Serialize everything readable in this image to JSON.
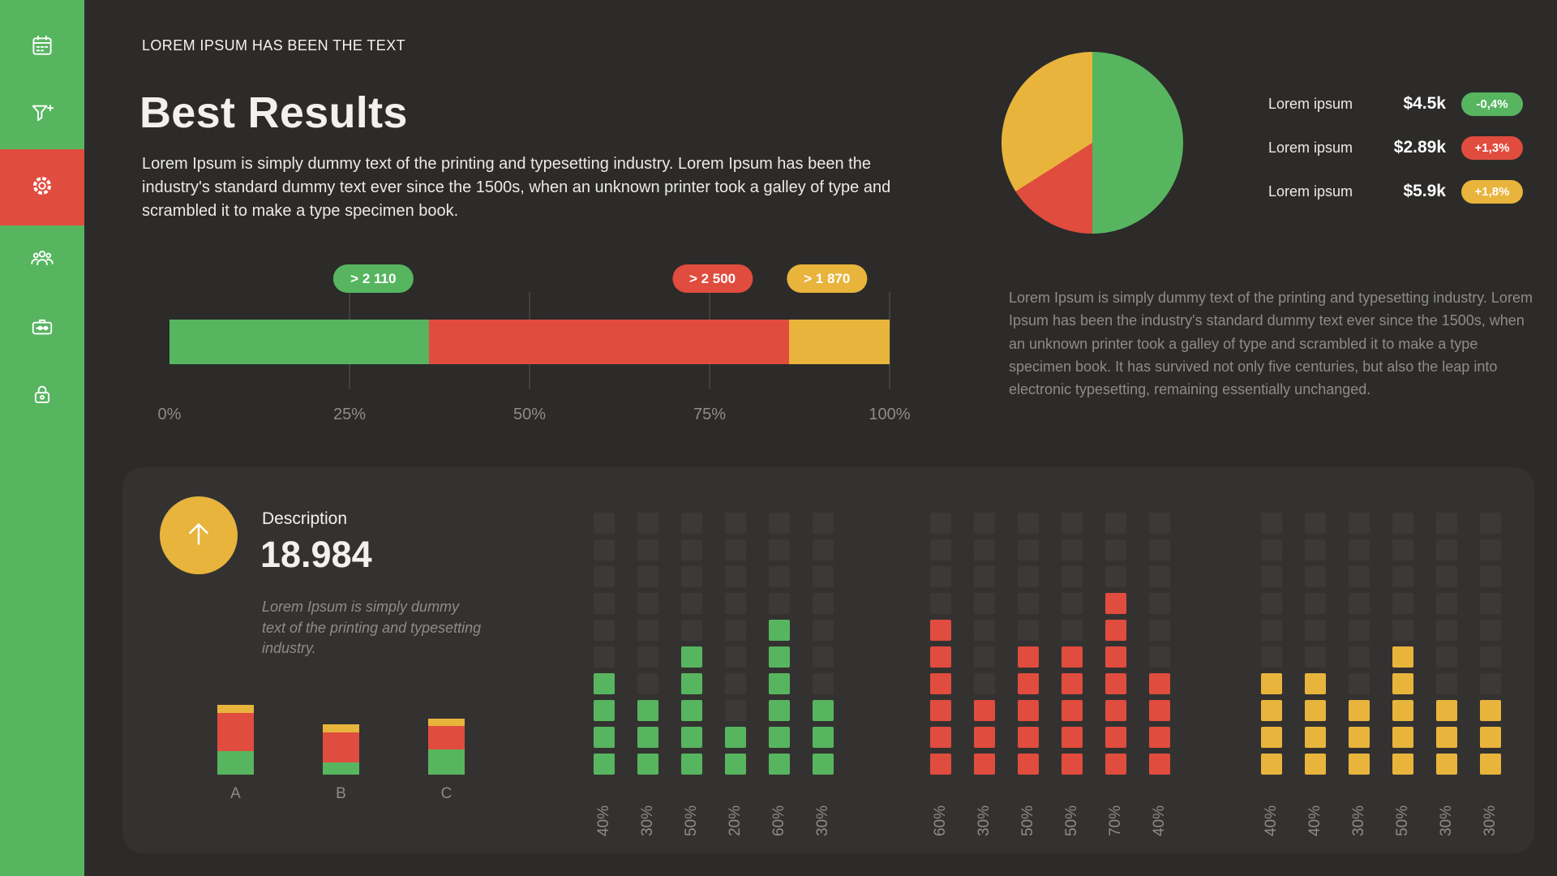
{
  "theme": {
    "background": "#2c2b29",
    "card": "#343231",
    "sidebar": "#57b560",
    "green": "#57b560",
    "red": "#e04c3e",
    "yellow": "#e8b43c",
    "empty": "#3b3a37",
    "muted": "#8d8c8a",
    "text": "#f2f1ef"
  },
  "sidebar": {
    "active_color": "#e04c3e",
    "items": [
      {
        "icon": "calendar-icon",
        "active": false
      },
      {
        "icon": "filter-add-icon",
        "active": false
      },
      {
        "icon": "gear-icon",
        "active": true
      },
      {
        "icon": "users-icon",
        "active": false
      },
      {
        "icon": "briefcase-icon",
        "active": false
      },
      {
        "icon": "lock-icon",
        "active": false
      }
    ]
  },
  "header": {
    "eyebrow": "LOREM IPSUM HAS BEEN THE TEXT",
    "title": "Best Results",
    "paragraph": "Lorem Ipsum is simply dummy text of the printing and typesetting industry. Lorem Ipsum has been the industry's standard dummy text ever since the 1500s, when an unknown printer took a galley of type and scrambled it to make a type specimen book."
  },
  "stacked_bar": {
    "segments": [
      {
        "label": "> 2 110",
        "color": "green",
        "percent": 36
      },
      {
        "label": "> 2 500",
        "color": "red",
        "percent": 50
      },
      {
        "label": "> 1 870",
        "color": "yellow",
        "percent": 14
      }
    ],
    "axis": [
      "0%",
      "25%",
      "50%",
      "75%",
      "100%"
    ]
  },
  "pie": {
    "slices": [
      {
        "color": "green",
        "percent": 50
      },
      {
        "color": "red",
        "percent": 16
      },
      {
        "color": "yellow",
        "percent": 34
      }
    ],
    "legend": [
      {
        "label": "Lorem ipsum",
        "value": "$4.5k",
        "badge": "-0,4%",
        "badge_color": "green"
      },
      {
        "label": "Lorem ipsum",
        "value": "$2.89k",
        "badge": "+1,3%",
        "badge_color": "red"
      },
      {
        "label": "Lorem ipsum",
        "value": "$5.9k",
        "badge": "+1,8%",
        "badge_color": "yellow"
      }
    ]
  },
  "right_paragraph": "Lorem Ipsum is simply dummy text of the printing and typesetting industry. Lorem Ipsum has been the industry's standard dummy text ever since the 1500s, when an unknown printer took a galley of type and scrambled it to make a type specimen book. It has survived not only five centuries, but also the leap into electronic typesetting, remaining essentially unchanged.",
  "summary_card": {
    "trend_icon": "arrow-up-icon",
    "stat_label": "Description",
    "stat_value": "18.984",
    "note": "Lorem Ipsum is simply dummy text of the printing and typesetting industry.",
    "mini_bars": {
      "categories": [
        "A",
        "B",
        "C"
      ],
      "bars": [
        {
          "yellow": 10,
          "red": 47,
          "green": 29
        },
        {
          "yellow": 10,
          "red": 37,
          "green": 15
        },
        {
          "yellow": 9,
          "red": 29,
          "green": 31
        }
      ]
    }
  },
  "waffle": {
    "rows": 10,
    "cell_unit_percent": 10,
    "groups": [
      {
        "color": "green",
        "values": [
          40,
          30,
          50,
          20,
          60,
          30
        ]
      },
      {
        "color": "red",
        "values": [
          60,
          30,
          50,
          50,
          70,
          40
        ]
      },
      {
        "color": "yellow",
        "values": [
          40,
          40,
          30,
          50,
          30,
          30
        ]
      }
    ]
  },
  "chart_data": [
    {
      "type": "bar",
      "subtype": "horizontal-stacked",
      "series": [
        {
          "name": "green-segment",
          "percent": 36,
          "annotation": "> 2 110"
        },
        {
          "name": "red-segment",
          "percent": 50,
          "annotation": "> 2 500"
        },
        {
          "name": "yellow-segment",
          "percent": 14,
          "annotation": "> 1 870"
        }
      ],
      "x_ticks": [
        "0%",
        "25%",
        "50%",
        "75%",
        "100%"
      ],
      "xlim": [
        0,
        100
      ],
      "grid": true
    },
    {
      "type": "pie",
      "slices": [
        {
          "name": "green",
          "percent": 50
        },
        {
          "name": "red",
          "percent": 16
        },
        {
          "name": "yellow",
          "percent": 34
        }
      ],
      "legend_position": "right",
      "legend": [
        {
          "label": "Lorem ipsum",
          "value": "$4.5k",
          "change": "-0,4%"
        },
        {
          "label": "Lorem ipsum",
          "value": "$2.89k",
          "change": "+1,3%"
        },
        {
          "label": "Lorem ipsum",
          "value": "$5.9k",
          "change": "+1,8%"
        }
      ]
    },
    {
      "type": "bar",
      "subtype": "vertical-stacked",
      "categories": [
        "A",
        "B",
        "C"
      ],
      "series": [
        {
          "name": "yellow",
          "values": [
            10,
            10,
            9
          ]
        },
        {
          "name": "red",
          "values": [
            47,
            37,
            29
          ]
        },
        {
          "name": "green",
          "values": [
            29,
            15,
            31
          ]
        }
      ]
    },
    {
      "type": "heatmap",
      "subtype": "waffle-columns",
      "rows": 10,
      "groups": [
        {
          "name": "green",
          "values_percent": [
            40,
            30,
            50,
            20,
            60,
            30
          ]
        },
        {
          "name": "red",
          "values_percent": [
            60,
            30,
            50,
            50,
            70,
            40
          ]
        },
        {
          "name": "yellow",
          "values_percent": [
            40,
            40,
            30,
            50,
            30,
            30
          ]
        }
      ]
    }
  ]
}
